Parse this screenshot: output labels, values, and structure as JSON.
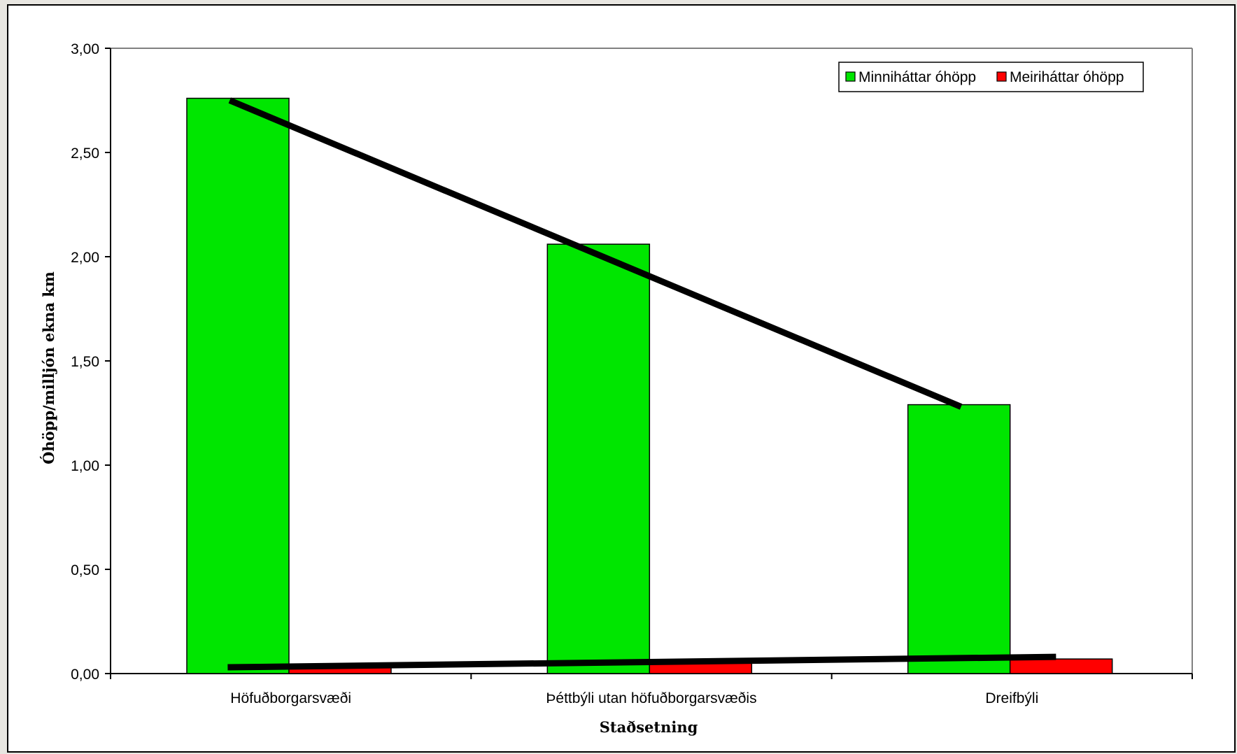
{
  "chart_data": {
    "type": "bar",
    "title": "",
    "xlabel": "Staðsetning",
    "ylabel": "Óhöpp/milljón ekna km",
    "categories": [
      "Höfuðborgarsvæði",
      "Þéttbýli utan höfuðborgarsvæðis",
      "Dreifbýli"
    ],
    "series": [
      {
        "name": "Minniháttar óhöpp",
        "values": [
          2.76,
          2.06,
          1.29
        ],
        "color": "#00e600"
      },
      {
        "name": "Meiriháttar óhöpp",
        "values": [
          0.04,
          0.05,
          0.07
        ],
        "color": "#ff0000"
      }
    ],
    "trendlines": [
      {
        "series": "Minniháttar óhöpp",
        "from": [
          1,
          2.75
        ],
        "to": [
          3,
          1.28
        ],
        "color": "#000000"
      },
      {
        "series": "Meiriháttar óhöpp",
        "from": [
          1,
          0.03
        ],
        "to": [
          3,
          0.08
        ],
        "color": "#000000"
      }
    ],
    "ylim": [
      0,
      3
    ],
    "yticks": [
      "0,00",
      "0,50",
      "1,00",
      "1,50",
      "2,00",
      "2,50",
      "3,00"
    ],
    "ytick_values": [
      0,
      0.5,
      1,
      1.5,
      2,
      2.5,
      3
    ],
    "grid": false,
    "legend": "top-right"
  }
}
